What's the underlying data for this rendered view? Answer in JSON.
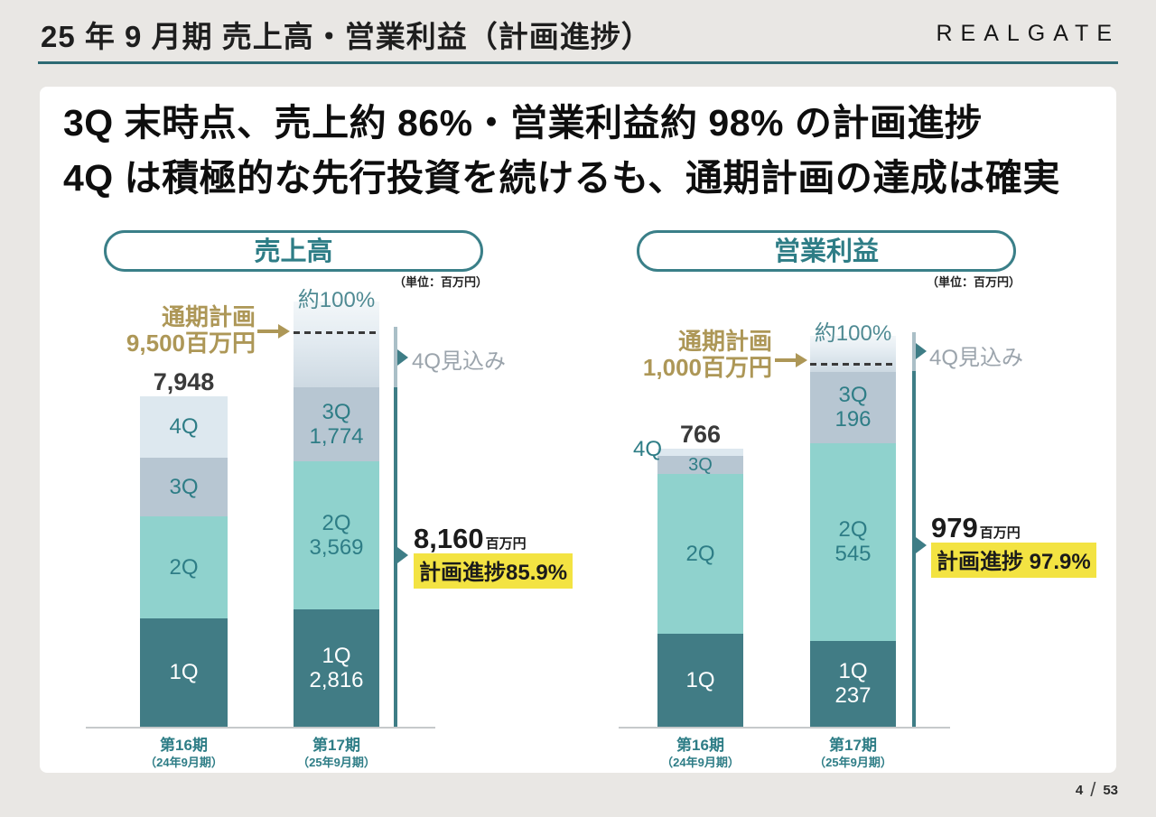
{
  "header": {
    "title": "25 年 9 月期 売上高・営業利益（計画進捗）",
    "logo": "REALGATE"
  },
  "headline": {
    "line1": "3Q 末時点、売上約 86%・営業利益約 98% の計画進捗",
    "line2": "4Q は積極的な先行投資を続けるも、通期計画の達成は確実"
  },
  "footer": {
    "page": "4",
    "separator": "/",
    "total": "53"
  },
  "colors": {
    "accent_teal": "#2e7d86",
    "bar_q1": "#417c85",
    "bar_q2": "#8fd2cd",
    "bar_q3": "#b7c6d2",
    "bar_q4": "#dde8ef",
    "plan_gold": "#ad9757",
    "highlight_yellow": "#f3e342",
    "forecast_gray_text": "#9ba4ac",
    "rule_teal": "#2d6a73"
  },
  "chart_data": [
    {
      "type": "bar",
      "stacked": true,
      "title": "売上高",
      "unit_label": "（単位：百万円）",
      "plan": {
        "value": 9500,
        "label_line1": "通期計画",
        "label_line2": "9,500百万円",
        "approx_label": "約100%"
      },
      "bars": [
        {
          "axis_label": "第16期",
          "axis_sublabel": "（24年9月期）",
          "total": 7948,
          "total_label": "7,948",
          "segments": [
            {
              "q": "1Q",
              "label": "1Q",
              "value": 2610,
              "estimated": true,
              "style": "q1"
            },
            {
              "q": "2Q",
              "label": "2Q",
              "value": 2450,
              "estimated": true,
              "style": "q2"
            },
            {
              "q": "3Q",
              "label": "3Q",
              "value": 1420,
              "estimated": true,
              "style": "q3"
            },
            {
              "q": "4Q",
              "label": "4Q",
              "value": 1468,
              "estimated": true,
              "style": "q4"
            }
          ]
        },
        {
          "axis_label": "第17期",
          "axis_sublabel": "（25年9月期）",
          "plan_line": true,
          "segments": [
            {
              "q": "1Q",
              "label": "1Q",
              "value_label": "2,816",
              "value": 2816,
              "style": "q1"
            },
            {
              "q": "2Q",
              "label": "2Q",
              "value_label": "3,569",
              "value": 3569,
              "style": "q2"
            },
            {
              "q": "3Q",
              "label": "3Q",
              "value_label": "1,774",
              "value": 1774,
              "style": "q3"
            },
            {
              "q": "4Q",
              "forecast": true,
              "value": 2080,
              "estimated": true,
              "style": "forecast"
            }
          ]
        }
      ],
      "annotations": {
        "forecast_label": "4Q見込み",
        "progress_value": "8,160",
        "progress_unit": "百万円",
        "progress_text": "計画進捗85.9%"
      }
    },
    {
      "type": "bar",
      "stacked": true,
      "title": "営業利益",
      "unit_label": "（単位：百万円）",
      "plan": {
        "value": 1000,
        "label_line1": "通期計画",
        "label_line2": "1,000百万円",
        "approx_label": "約100%"
      },
      "bars": [
        {
          "axis_label": "第16期",
          "axis_sublabel": "（24年9月期）",
          "total": 766,
          "total_label": "766",
          "outside_label": "4Q",
          "segments": [
            {
              "q": "1Q",
              "label": "1Q",
              "value": 256,
              "estimated": true,
              "style": "q1"
            },
            {
              "q": "2Q",
              "label": "2Q",
              "value": 440,
              "estimated": true,
              "style": "q2"
            },
            {
              "q": "3Q",
              "label": "3Q",
              "value": 50,
              "estimated": true,
              "style": "q3"
            },
            {
              "q": "4Q",
              "value": 20,
              "estimated": true,
              "style": "q4"
            }
          ]
        },
        {
          "axis_label": "第17期",
          "axis_sublabel": "（25年9月期）",
          "plan_line": true,
          "segments": [
            {
              "q": "1Q",
              "label": "1Q",
              "value_label": "237",
              "value": 237,
              "style": "q1"
            },
            {
              "q": "2Q",
              "label": "2Q",
              "value_label": "545",
              "value": 545,
              "style": "q2"
            },
            {
              "q": "3Q",
              "label": "3Q",
              "value_label": "196",
              "value": 196,
              "style": "q3"
            },
            {
              "q": "4Q",
              "forecast": true,
              "value": 100,
              "estimated": true,
              "style": "forecast"
            }
          ]
        }
      ],
      "annotations": {
        "forecast_label": "4Q見込み",
        "progress_value": "979",
        "progress_unit": "百万円",
        "progress_text": "計画進捗 97.9%"
      }
    }
  ]
}
